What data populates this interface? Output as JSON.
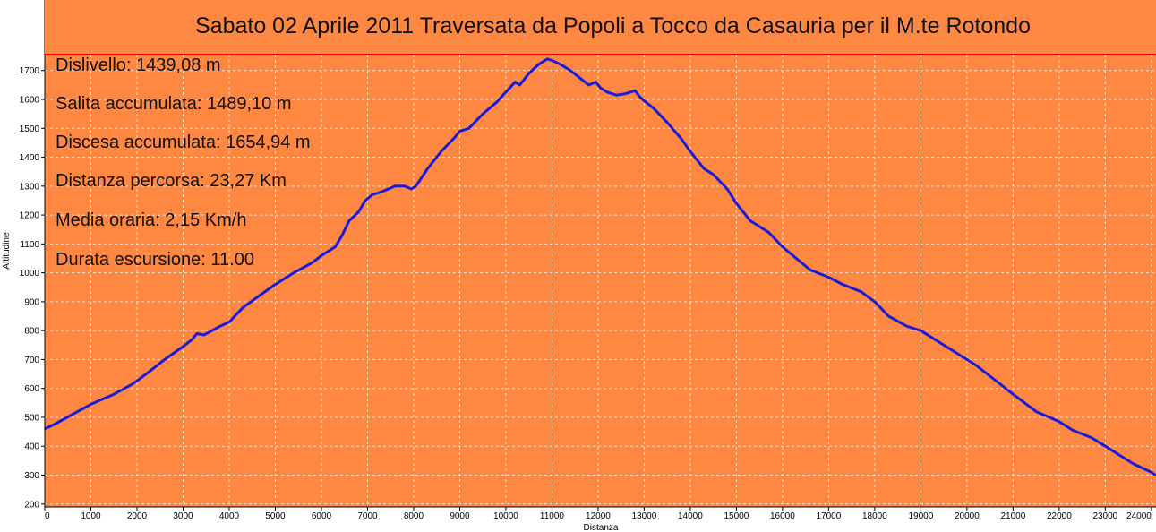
{
  "title": "Sabato 02 Aprile 2011 Traversata da Popoli a Tocco da Casauria per il M.te Rotondo",
  "stats": [
    "Dislivello: 1439,08 m",
    "Salita accumulata: 1489,10 m",
    "Discesa accumulata: 1654,94 m",
    "Distanza percorsa: 23,27 Km",
    "Media oraria: 2,15 Km/h",
    "Durata escursione: 11.00"
  ],
  "colors": {
    "plot_background": "#fe8742",
    "line": "#1a1adb",
    "grid": "#ffffff",
    "title_border": "#ff0000"
  },
  "chart_data": {
    "type": "line",
    "title": "Sabato 02 Aprile 2011 Traversata da Popoli a Tocco da Casauria per il M.te Rotondo",
    "xlabel": "Distanza",
    "ylabel": "Altitudine",
    "xlim": [
      0,
      24100
    ],
    "ylim": [
      190,
      1755
    ],
    "x_ticks": [
      0,
      1000,
      2000,
      3000,
      4000,
      5000,
      6000,
      7000,
      8000,
      9000,
      10000,
      11000,
      12000,
      13000,
      14000,
      15000,
      16000,
      17000,
      18000,
      19000,
      20000,
      21000,
      22000,
      23000,
      24000
    ],
    "x_tick_labels": [
      "0",
      "1000",
      "2000",
      "3000",
      "4000",
      "5000",
      "6000",
      "7000",
      "8000",
      "9000",
      "10000",
      "11000",
      "12000",
      "13000",
      "14000",
      "15000",
      "16000",
      "17000",
      "18000",
      "19000",
      "20000",
      "21000",
      "22000",
      "23000",
      "24000"
    ],
    "y_ticks": [
      200,
      300,
      400,
      500,
      600,
      700,
      800,
      900,
      1000,
      1100,
      1200,
      1300,
      1400,
      1500,
      1600,
      1700
    ],
    "y_tick_labels": [
      "200",
      "300",
      "400",
      "500",
      "600",
      "700",
      "800",
      "900",
      "1000",
      "1100",
      "1200",
      "1300",
      "1400",
      "1500",
      "1600",
      "1700"
    ],
    "grid": true,
    "series": [
      {
        "x": [
          0,
          200,
          600,
          1000,
          1500,
          1900,
          2200,
          2600,
          3000,
          3200,
          3300,
          3450,
          3800,
          4000,
          4300,
          4600,
          5000,
          5400,
          5800,
          6000,
          6300,
          6450,
          6600,
          6800,
          6950,
          7100,
          7300,
          7600,
          7800,
          7950,
          8050,
          8300,
          8600,
          8900,
          9000,
          9200,
          9500,
          9800,
          10000,
          10200,
          10300,
          10500,
          10700,
          10900,
          11000,
          11200,
          11400,
          11600,
          11800,
          11950,
          12050,
          12200,
          12400,
          12600,
          12800,
          12900,
          13000,
          13200,
          13500,
          13800,
          14000,
          14300,
          14500,
          14800,
          15000,
          15300,
          15700,
          16000,
          16300,
          16600,
          17000,
          17300,
          17700,
          18000,
          18300,
          18700,
          19000,
          19400,
          19800,
          20200,
          20600,
          21000,
          21500,
          22000,
          22300,
          22700,
          23000,
          23300,
          23600,
          24000,
          24100
        ],
        "y": [
          460,
          475,
          510,
          545,
          580,
          615,
          650,
          700,
          745,
          770,
          790,
          785,
          815,
          830,
          880,
          915,
          960,
          1000,
          1035,
          1060,
          1090,
          1130,
          1180,
          1210,
          1250,
          1270,
          1280,
          1300,
          1300,
          1290,
          1300,
          1360,
          1420,
          1470,
          1490,
          1500,
          1550,
          1590,
          1625,
          1660,
          1650,
          1690,
          1720,
          1740,
          1735,
          1720,
          1700,
          1675,
          1650,
          1660,
          1640,
          1625,
          1615,
          1620,
          1630,
          1610,
          1595,
          1570,
          1520,
          1465,
          1420,
          1360,
          1340,
          1290,
          1240,
          1180,
          1140,
          1090,
          1050,
          1010,
          985,
          960,
          935,
          900,
          850,
          815,
          800,
          760,
          720,
          680,
          630,
          580,
          520,
          485,
          455,
          430,
          400,
          370,
          340,
          310,
          298
        ]
      }
    ]
  }
}
